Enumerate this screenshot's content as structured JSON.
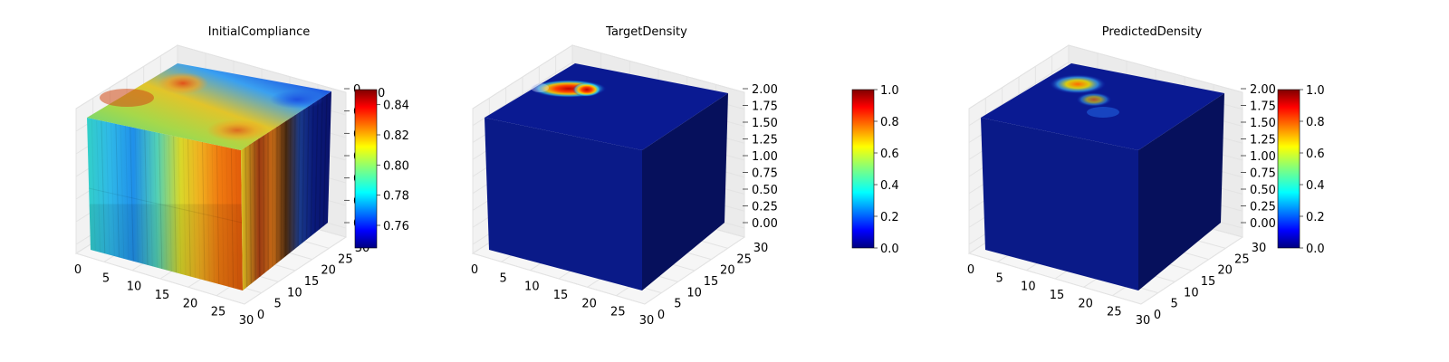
{
  "chart_data": [
    {
      "type": "voxel-3d",
      "title": "InitialCompliance",
      "x_ticks": [
        "0",
        "5",
        "10",
        "15",
        "20",
        "25",
        "30"
      ],
      "y_ticks": [
        "0",
        "5",
        "10",
        "15",
        "20",
        "25",
        "30"
      ],
      "z_ticks_visible": [
        "0",
        "0",
        "0",
        "0",
        "0",
        "0",
        "0"
      ],
      "colorbar": {
        "min": 0.745,
        "max": 0.85,
        "ticks": [
          "0.76",
          "0.78",
          "0.80",
          "0.82",
          "0.84"
        ],
        "top_label_fragment": "0"
      },
      "colormap": "jet",
      "value_range": [
        0.745,
        0.85
      ]
    },
    {
      "type": "voxel-3d",
      "title": "TargetDensity",
      "x_ticks": [
        "0",
        "5",
        "10",
        "15",
        "20",
        "25",
        "30"
      ],
      "y_ticks": [
        "0",
        "5",
        "10",
        "15",
        "20",
        "25",
        "30"
      ],
      "z_ticks": [
        "0.00",
        "0.25",
        "0.50",
        "0.75",
        "1.00",
        "1.25",
        "1.50",
        "1.75",
        "2.00"
      ],
      "colorbar": {
        "min": 0.0,
        "max": 1.0,
        "ticks": [
          "0.0",
          "0.2",
          "0.4",
          "0.6",
          "0.8",
          "1.0"
        ]
      },
      "colormap": "jet",
      "value_range": [
        0.0,
        1.0
      ]
    },
    {
      "type": "voxel-3d",
      "title": "PredictedDensity",
      "x_ticks": [
        "0",
        "5",
        "10",
        "15",
        "20",
        "25",
        "30"
      ],
      "y_ticks": [
        "0",
        "5",
        "10",
        "15",
        "20",
        "25",
        "30"
      ],
      "z_ticks": [
        "0.00",
        "0.25",
        "0.50",
        "0.75",
        "1.00",
        "1.25",
        "1.50",
        "1.75",
        "2.00"
      ],
      "colorbar": {
        "min": 0.0,
        "max": 1.0,
        "ticks": [
          "0.0",
          "0.2",
          "0.4",
          "0.6",
          "0.8",
          "1.0"
        ]
      },
      "colormap": "jet",
      "value_range": [
        0.0,
        1.0
      ]
    }
  ]
}
